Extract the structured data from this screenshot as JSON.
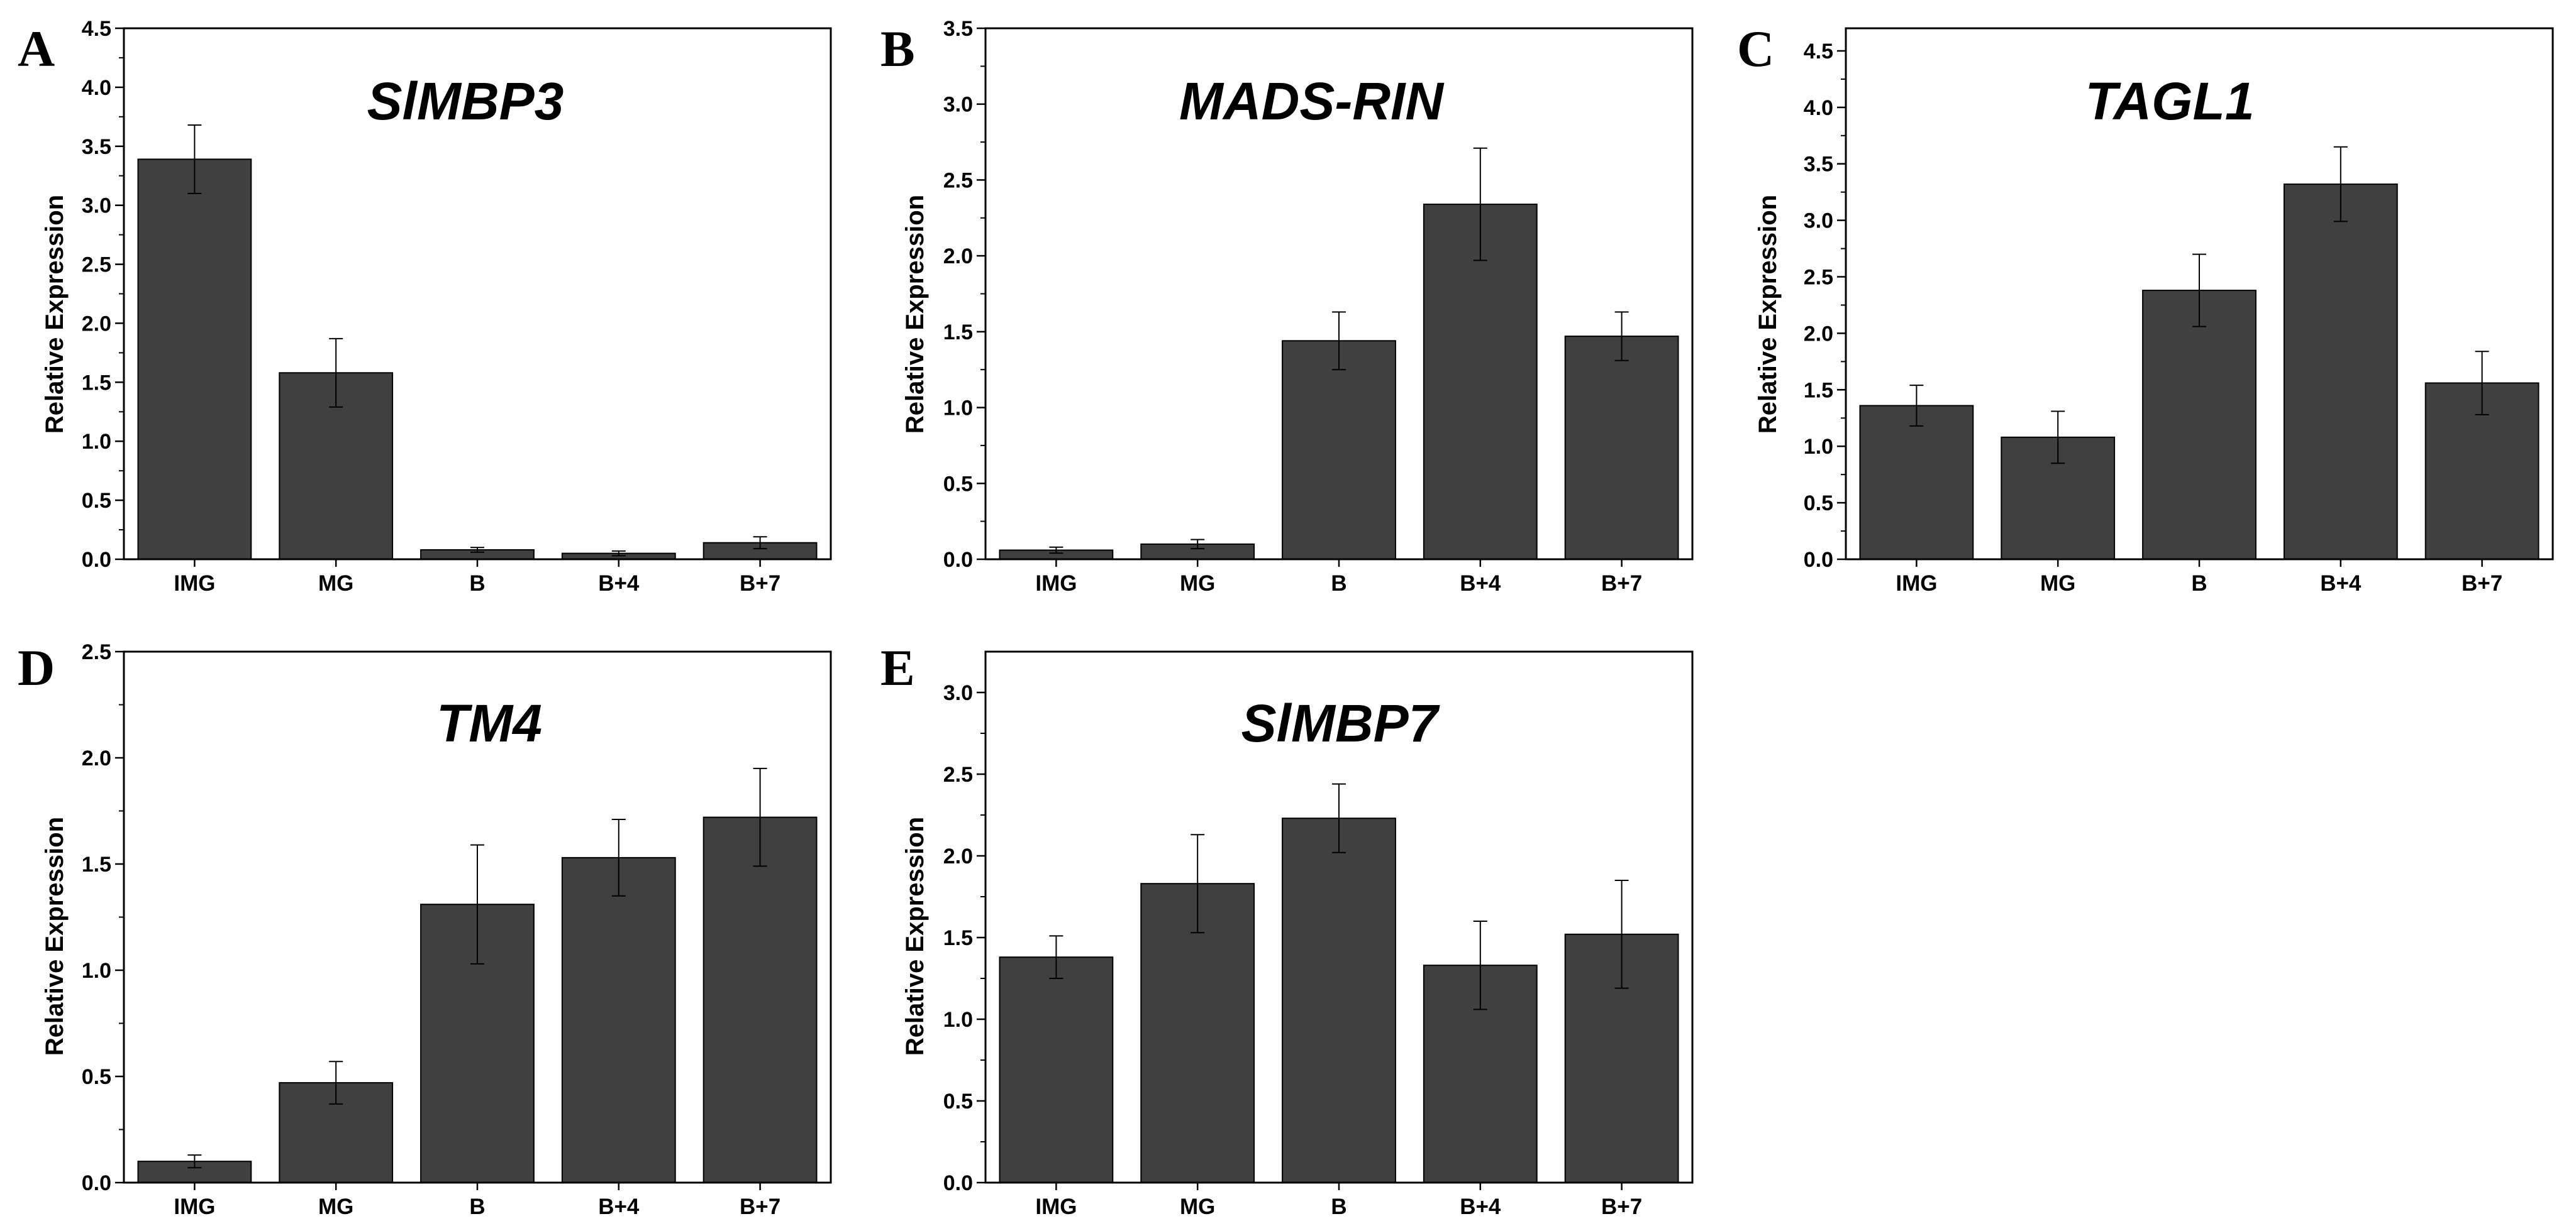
{
  "figure": {
    "colors": {
      "bar": "#404040",
      "axis": "#000000",
      "background": "#ffffff"
    }
  },
  "chart_data": [
    {
      "type": "bar",
      "panel": "A",
      "title": "SlMBP3",
      "xlabel": "",
      "ylabel": "Relative Expression",
      "categories": [
        "IMG",
        "MG",
        "B",
        "B+4",
        "B+7"
      ],
      "values": [
        3.39,
        1.58,
        0.08,
        0.05,
        0.14
      ],
      "errors": [
        0.29,
        0.29,
        0.02,
        0.02,
        0.05
      ],
      "ylim": [
        0,
        4.5
      ],
      "yticks": [
        "0.0",
        "0.5",
        "1.0",
        "1.5",
        "2.0",
        "2.5",
        "3.0",
        "3.5",
        "4.0",
        "4.5"
      ]
    },
    {
      "type": "bar",
      "panel": "B",
      "title": "MADS-RIN",
      "xlabel": "",
      "ylabel": "Relative Expression",
      "categories": [
        "IMG",
        "MG",
        "B",
        "B+4",
        "B+7"
      ],
      "values": [
        0.06,
        0.1,
        1.44,
        2.34,
        1.47
      ],
      "errors": [
        0.02,
        0.03,
        0.19,
        0.37,
        0.16
      ],
      "ylim": [
        0,
        3.5
      ],
      "yticks": [
        "0.0",
        "0.5",
        "1.0",
        "1.5",
        "2.0",
        "2.5",
        "3.0",
        "3.5"
      ]
    },
    {
      "type": "bar",
      "panel": "C",
      "title": "TAGL1",
      "xlabel": "",
      "ylabel": "Relative Expression",
      "categories": [
        "IMG",
        "MG",
        "B",
        "B+4",
        "B+7"
      ],
      "values": [
        1.36,
        1.08,
        2.38,
        3.32,
        1.56
      ],
      "errors": [
        0.18,
        0.23,
        0.32,
        0.33,
        0.28
      ],
      "ylim": [
        0,
        4.7
      ],
      "yticks": [
        "0.0",
        "0.5",
        "1.0",
        "1.5",
        "2.0",
        "2.5",
        "3.0",
        "3.5",
        "4.0",
        "4.5"
      ]
    },
    {
      "type": "bar",
      "panel": "D",
      "title": "TM4",
      "xlabel": "",
      "ylabel": "Relative Expression",
      "categories": [
        "IMG",
        "MG",
        "B",
        "B+4",
        "B+7"
      ],
      "values": [
        0.1,
        0.47,
        1.31,
        1.53,
        1.72
      ],
      "errors": [
        0.03,
        0.1,
        0.28,
        0.18,
        0.23
      ],
      "ylim": [
        0,
        2.5
      ],
      "yticks": [
        "0.0",
        "0.5",
        "1.0",
        "1.5",
        "2.0",
        "2.5"
      ]
    },
    {
      "type": "bar",
      "panel": "E",
      "title": "SlMBP7",
      "xlabel": "",
      "ylabel": "Relative Expression",
      "categories": [
        "IMG",
        "MG",
        "B",
        "B+4",
        "B+7"
      ],
      "values": [
        1.38,
        1.83,
        2.23,
        1.33,
        1.52
      ],
      "errors": [
        0.13,
        0.3,
        0.21,
        0.27,
        0.33
      ],
      "ylim": [
        0,
        3.25
      ],
      "yticks": [
        "0.0",
        "0.5",
        "1.0",
        "1.5",
        "2.0",
        "2.5",
        "3.0"
      ]
    }
  ]
}
